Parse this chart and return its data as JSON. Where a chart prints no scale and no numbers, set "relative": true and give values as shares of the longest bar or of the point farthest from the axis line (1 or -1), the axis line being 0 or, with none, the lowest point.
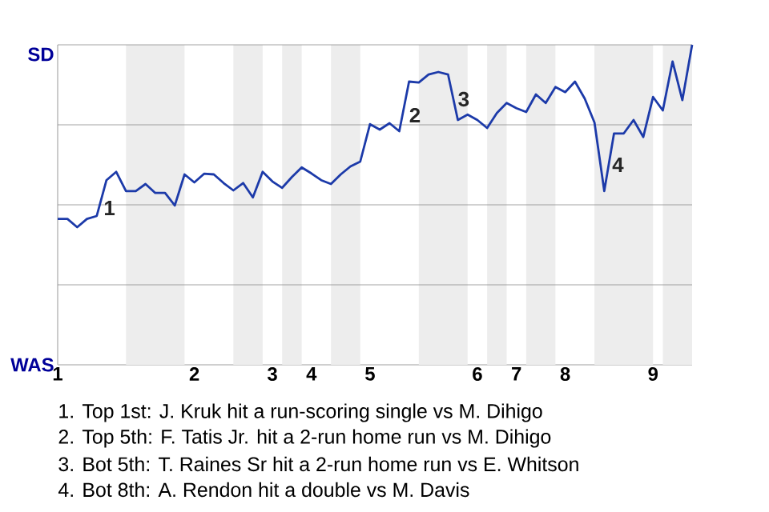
{
  "chart_data": {
    "type": "line",
    "color": "#1c3aa9",
    "relative": true,
    "categories": [
      "1",
      null,
      null,
      null,
      null,
      null,
      null,
      null,
      null,
      null,
      null,
      null,
      null,
      null,
      "2",
      null,
      null,
      null,
      null,
      null,
      null,
      null,
      "3",
      null,
      null,
      null,
      "4",
      null,
      null,
      null,
      null,
      null,
      "5",
      null,
      null,
      null,
      null,
      null,
      null,
      null,
      null,
      null,
      null,
      "6",
      null,
      null,
      null,
      "7",
      null,
      null,
      null,
      null,
      "8",
      null,
      null,
      null,
      null,
      null,
      null,
      null,
      null,
      "9",
      null,
      null,
      null,
      null
    ],
    "values": [
      0.456,
      0.456,
      0.43,
      0.456,
      0.465,
      0.577,
      0.603,
      0.543,
      0.543,
      0.565,
      0.537,
      0.537,
      0.498,
      0.595,
      0.57,
      0.597,
      0.595,
      0.568,
      0.545,
      0.568,
      0.523,
      0.603,
      0.573,
      0.553,
      0.587,
      0.617,
      0.598,
      0.577,
      0.565,
      0.595,
      0.62,
      0.635,
      0.752,
      0.735,
      0.755,
      0.73,
      0.885,
      0.882,
      0.907,
      0.915,
      0.907,
      0.765,
      0.782,
      0.765,
      0.74,
      0.787,
      0.818,
      0.802,
      0.79,
      0.845,
      0.818,
      0.868,
      0.852,
      0.885,
      0.832,
      0.757,
      0.543,
      0.723,
      0.723,
      0.765,
      0.712,
      0.837,
      0.795,
      0.948,
      0.827,
      1.0
    ],
    "marker": "none",
    "line_style": "solid",
    "ref_lines": [
      {
        "axis": "y",
        "value": 0.25,
        "color": "#8c8c8c"
      },
      {
        "axis": "y",
        "value": 0.5,
        "color": "#8c8c8c"
      },
      {
        "axis": "y",
        "value": 0.75,
        "color": "#8c8c8c"
      },
      {
        "axis": "y",
        "value": 1.0,
        "color": "#8c8c8c"
      }
    ],
    "annotations": [
      "SD",
      "WAS",
      "1",
      "2",
      "3",
      "4",
      "1. Top 1st: J. Kruk hit a run-scoring single vs M. Dihigo",
      "2. Top 5th: F. Tatis Jr. hit a 2-run home run vs M. Dihigo",
      "3. Bot 5th: T. Raines Sr hit a 2-run home run vs E. Whitson",
      "4. Bot 8th: A. Rendon hit a double vs M. Davis"
    ]
  }
}
